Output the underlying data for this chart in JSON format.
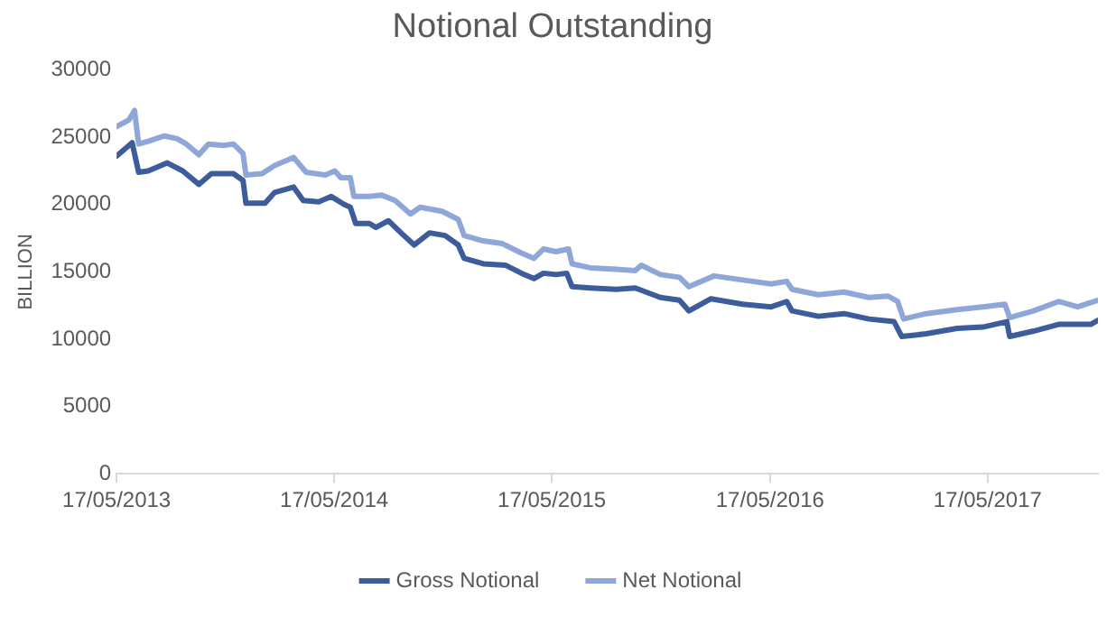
{
  "chart_data": {
    "type": "line",
    "title": "Notional Outstanding",
    "ylabel": "BILLION",
    "ylim": [
      0,
      30000
    ],
    "yticks": [
      0,
      5000,
      10000,
      15000,
      20000,
      25000,
      30000
    ],
    "xlim": [
      "2013-05-17",
      "2017-11-18"
    ],
    "xticks": [
      {
        "value": "2013-05-17",
        "label": "17/05/2013"
      },
      {
        "value": "2014-05-17",
        "label": "17/05/2014"
      },
      {
        "value": "2015-05-17",
        "label": "17/05/2015"
      },
      {
        "value": "2016-05-17",
        "label": "17/05/2016"
      },
      {
        "value": "2017-05-17",
        "label": "17/05/2017"
      }
    ],
    "legend": "bottom",
    "grid": false,
    "series": [
      {
        "name": "Gross Notional",
        "color": "#3c5c9c",
        "x": [
          "2013-05-17",
          "2013-06-12",
          "2013-06-23",
          "2013-07-09",
          "2013-08-10",
          "2013-09-05",
          "2013-10-02",
          "2013-10-23",
          "2013-11-29",
          "2013-12-15",
          "2013-12-20",
          "2014-01-21",
          "2014-02-06",
          "2014-03-10",
          "2014-03-26",
          "2014-04-21",
          "2014-05-12",
          "2014-06-03",
          "2014-06-13",
          "2014-06-22",
          "2014-07-15",
          "2014-07-26",
          "2014-08-16",
          "2014-09-06",
          "2014-09-28",
          "2014-10-24",
          "2014-11-19",
          "2014-12-11",
          "2014-12-21",
          "2015-01-22",
          "2015-02-28",
          "2015-03-27",
          "2015-04-17",
          "2015-05-03",
          "2015-05-24",
          "2015-06-11",
          "2015-06-20",
          "2015-07-21",
          "2015-09-02",
          "2015-10-04",
          "2015-11-15",
          "2015-12-17",
          "2016-01-02",
          "2016-02-08",
          "2016-04-01",
          "2016-05-19",
          "2016-06-14",
          "2016-06-23",
          "2016-08-06",
          "2016-09-18",
          "2016-10-30",
          "2016-12-11",
          "2016-12-24",
          "2017-02-03",
          "2017-03-27",
          "2017-05-09",
          "2017-06-18",
          "2017-06-23",
          "2017-08-02",
          "2017-09-13",
          "2017-11-06",
          "2017-11-18"
        ],
        "values": [
          23600,
          24600,
          22400,
          22500,
          23100,
          22500,
          21500,
          22300,
          22300,
          21800,
          20100,
          20100,
          20900,
          21300,
          20300,
          20200,
          20600,
          20000,
          19800,
          18600,
          18600,
          18300,
          18800,
          17900,
          17000,
          17900,
          17700,
          17000,
          16000,
          15600,
          15500,
          14900,
          14500,
          14900,
          14800,
          14900,
          13900,
          13800,
          13700,
          13800,
          13100,
          12900,
          12100,
          13000,
          12600,
          12400,
          12800,
          12100,
          11700,
          11900,
          11500,
          11300,
          10200,
          10400,
          10800,
          10900,
          11300,
          10200,
          10600,
          11100,
          11100,
          11400
        ]
      },
      {
        "name": "Net Notional",
        "color": "#8ea6d8",
        "x": [
          "2013-05-17",
          "2013-06-07",
          "2013-06-16",
          "2013-06-23",
          "2013-07-09",
          "2013-08-05",
          "2013-08-26",
          "2013-09-11",
          "2013-10-02",
          "2013-10-18",
          "2013-11-13",
          "2013-11-29",
          "2013-12-15",
          "2013-12-20",
          "2014-01-16",
          "2014-02-06",
          "2014-03-10",
          "2014-03-31",
          "2014-05-02",
          "2014-05-18",
          "2014-05-28",
          "2014-06-13",
          "2014-06-19",
          "2014-07-15",
          "2014-08-05",
          "2014-08-27",
          "2014-09-22",
          "2014-10-08",
          "2014-11-14",
          "2014-12-11",
          "2014-12-21",
          "2015-01-22",
          "2015-02-23",
          "2015-03-27",
          "2015-04-17",
          "2015-05-03",
          "2015-05-24",
          "2015-06-14",
          "2015-06-20",
          "2015-07-21",
          "2015-09-02",
          "2015-10-04",
          "2015-10-14",
          "2015-11-15",
          "2015-12-17",
          "2016-01-02",
          "2016-02-13",
          "2016-04-01",
          "2016-05-19",
          "2016-06-14",
          "2016-06-23",
          "2016-08-06",
          "2016-09-18",
          "2016-10-30",
          "2016-12-01",
          "2016-12-17",
          "2016-12-27",
          "2017-02-03",
          "2017-03-27",
          "2017-05-09",
          "2017-06-15",
          "2017-06-23",
          "2017-08-02",
          "2017-09-13",
          "2017-10-15",
          "2017-11-18"
        ],
        "values": [
          25800,
          26300,
          27000,
          24500,
          24700,
          25100,
          24900,
          24500,
          23700,
          24500,
          24400,
          24500,
          23800,
          22200,
          22300,
          22900,
          23500,
          22400,
          22200,
          22500,
          22000,
          22000,
          20600,
          20600,
          20700,
          20300,
          19300,
          19800,
          19500,
          18900,
          17700,
          17300,
          17100,
          16400,
          16000,
          16700,
          16500,
          16700,
          15600,
          15300,
          15200,
          15100,
          15500,
          14800,
          14600,
          13900,
          14700,
          14400,
          14100,
          14300,
          13700,
          13300,
          13500,
          13100,
          13200,
          12800,
          11500,
          11900,
          12200,
          12400,
          12600,
          11600,
          12100,
          12800,
          12400,
          12900
        ]
      }
    ]
  }
}
